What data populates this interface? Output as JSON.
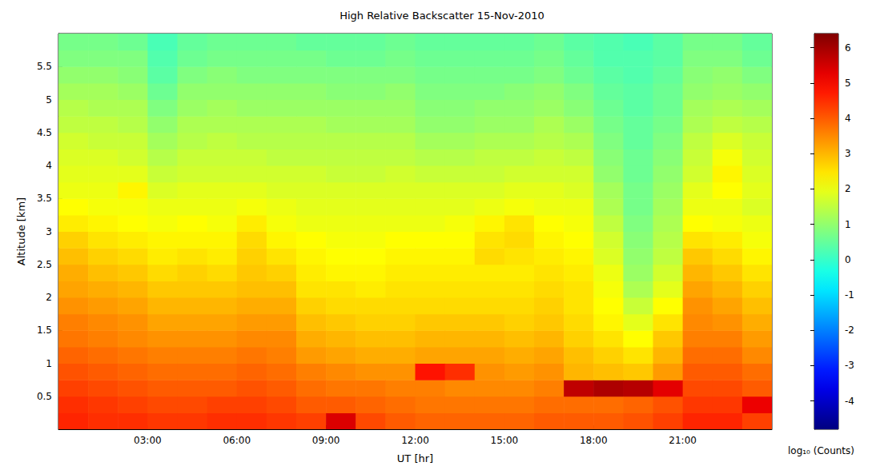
{
  "chart_data": {
    "type": "heatmap",
    "title": "High Relative Backscatter 15-Nov-2010",
    "xlabel": "UT [hr]",
    "ylabel": "Altitude [km]",
    "xlim": [
      0,
      24
    ],
    "xticks": [
      {
        "value": 3,
        "label": "03:00"
      },
      {
        "value": 6,
        "label": "06:00"
      },
      {
        "value": 9,
        "label": "09:00"
      },
      {
        "value": 12,
        "label": "12:00"
      },
      {
        "value": 15,
        "label": "15:00"
      },
      {
        "value": 18,
        "label": "18:00"
      },
      {
        "value": 21,
        "label": "21:00"
      }
    ],
    "ylim": [
      0,
      6
    ],
    "yticks": [
      0.5,
      1,
      1.5,
      2,
      2.5,
      3,
      3.5,
      4,
      4.5,
      5,
      5.5
    ],
    "grid": false,
    "x": [
      0.5,
      1.5,
      2.5,
      3.5,
      4.5,
      5.5,
      6.5,
      7.5,
      8.5,
      9.5,
      10.5,
      11.5,
      12.5,
      13.5,
      14.5,
      15.5,
      16.5,
      17.5,
      18.5,
      19.5,
      20.5,
      21.5,
      22.5,
      23.5
    ],
    "y": [
      0.125,
      0.375,
      0.625,
      0.875,
      1.125,
      1.375,
      1.625,
      1.875,
      2.125,
      2.375,
      2.625,
      2.875,
      3.125,
      3.375,
      3.625,
      3.875,
      4.125,
      4.375,
      4.625,
      4.875,
      5.125,
      5.375,
      5.625,
      5.875
    ],
    "z": [
      [
        4.6,
        4.5,
        4.3,
        4.1,
        3.9,
        3.7,
        3.6,
        3.4,
        3.2,
        3.1,
        2.9,
        2.7,
        2.4,
        2.2,
        2.0,
        1.9,
        1.8,
        1.7,
        1.5,
        1.4,
        1.2,
        1.0,
        0.8,
        0.7
      ],
      [
        4.5,
        4.4,
        4.2,
        4.0,
        3.8,
        3.6,
        3.5,
        3.3,
        3.1,
        2.9,
        2.7,
        2.5,
        2.3,
        2.1,
        2.0,
        1.9,
        1.8,
        1.6,
        1.5,
        1.3,
        1.2,
        1.0,
        0.8,
        0.7
      ],
      [
        4.5,
        4.3,
        4.1,
        3.9,
        3.7,
        3.5,
        3.4,
        3.2,
        3.0,
        2.8,
        2.6,
        2.4,
        2.2,
        2.1,
        2.3,
        1.9,
        1.7,
        1.6,
        1.4,
        1.3,
        1.1,
        0.9,
        0.8,
        0.6
      ],
      [
        4.4,
        4.2,
        4.0,
        3.8,
        3.6,
        3.4,
        3.2,
        3.0,
        2.8,
        2.6,
        2.4,
        2.3,
        2.1,
        2.0,
        1.8,
        1.6,
        1.4,
        1.2,
        1.0,
        0.8,
        0.6,
        0.4,
        0.3,
        0.2
      ],
      [
        4.4,
        4.2,
        4.0,
        3.8,
        3.6,
        3.4,
        3.2,
        3.0,
        2.8,
        2.7,
        2.5,
        2.3,
        2.2,
        2.0,
        1.9,
        1.7,
        1.6,
        1.4,
        1.3,
        1.1,
        1.0,
        0.8,
        0.6,
        0.5
      ],
      [
        4.5,
        4.3,
        4.0,
        3.8,
        3.6,
        3.4,
        3.2,
        3.0,
        2.8,
        2.6,
        2.4,
        2.3,
        2.1,
        2.0,
        1.9,
        1.7,
        1.6,
        1.5,
        1.3,
        1.2,
        1.0,
        0.9,
        0.7,
        0.6
      ],
      [
        4.5,
        4.3,
        4.1,
        3.9,
        3.7,
        3.5,
        3.3,
        3.1,
        2.9,
        2.8,
        2.7,
        2.6,
        2.4,
        2.1,
        1.9,
        1.7,
        1.6,
        1.4,
        1.3,
        1.1,
        1.0,
        0.8,
        0.7,
        0.6
      ],
      [
        4.4,
        4.2,
        4.0,
        3.8,
        3.6,
        3.5,
        3.3,
        3.1,
        2.9,
        2.7,
        2.5,
        2.3,
        2.1,
        2.0,
        1.8,
        1.7,
        1.5,
        1.4,
        1.3,
        1.1,
        1.0,
        0.8,
        0.7,
        0.6
      ],
      [
        4.3,
        4.0,
        3.8,
        3.6,
        3.3,
        3.1,
        2.9,
        2.7,
        2.5,
        2.4,
        2.3,
        2.2,
        2.0,
        1.9,
        1.8,
        1.7,
        1.5,
        1.4,
        1.3,
        1.1,
        1.0,
        0.8,
        0.7,
        0.5
      ],
      [
        5.4,
        4.0,
        3.7,
        3.5,
        3.2,
        3.0,
        2.8,
        2.6,
        2.5,
        2.3,
        2.2,
        2.1,
        2.0,
        1.9,
        1.8,
        1.6,
        1.5,
        1.4,
        1.2,
        1.1,
        0.9,
        0.8,
        0.6,
        0.5
      ],
      [
        4.2,
        3.9,
        3.7,
        3.4,
        3.1,
        2.9,
        2.7,
        2.6,
        2.4,
        2.3,
        2.2,
        2.1,
        2.0,
        1.9,
        1.8,
        1.6,
        1.5,
        1.4,
        1.2,
        1.1,
        0.9,
        0.8,
        0.6,
        0.5
      ],
      [
        4.0,
        3.8,
        3.6,
        3.4,
        3.1,
        2.9,
        2.7,
        2.6,
        2.5,
        2.4,
        2.3,
        2.2,
        2.0,
        1.9,
        1.8,
        1.7,
        1.5,
        1.4,
        1.2,
        1.1,
        1.0,
        0.8,
        0.7,
        0.6
      ],
      [
        3.9,
        3.7,
        3.6,
        4.8,
        3.2,
        3.0,
        2.8,
        2.6,
        2.5,
        2.4,
        2.3,
        2.2,
        2.0,
        1.9,
        1.8,
        1.6,
        1.4,
        1.2,
        1.0,
        0.9,
        0.8,
        0.7,
        0.6,
        0.5
      ],
      [
        3.9,
        3.7,
        3.5,
        4.5,
        3.2,
        3.0,
        2.8,
        2.6,
        2.5,
        2.4,
        2.3,
        2.2,
        2.1,
        1.9,
        1.8,
        1.6,
        1.4,
        1.2,
        1.0,
        0.9,
        0.8,
        0.7,
        0.6,
        0.5
      ],
      [
        3.9,
        3.7,
        3.5,
        3.4,
        3.2,
        3.0,
        2.8,
        2.6,
        2.5,
        2.4,
        2.6,
        2.5,
        2.3,
        2.0,
        1.8,
        1.6,
        1.5,
        1.3,
        1.1,
        1.0,
        0.8,
        0.7,
        0.6,
        0.5
      ],
      [
        3.9,
        3.7,
        3.5,
        3.3,
        3.1,
        2.9,
        2.7,
        2.6,
        2.5,
        2.4,
        2.5,
        2.6,
        2.5,
        2.1,
        1.9,
        1.7,
        1.5,
        1.3,
        1.1,
        1.0,
        0.9,
        0.7,
        0.6,
        0.5
      ],
      [
        4.0,
        3.8,
        3.6,
        3.4,
        3.2,
        3.0,
        2.8,
        2.7,
        2.6,
        2.5,
        2.4,
        2.3,
        2.2,
        2.0,
        1.9,
        1.7,
        1.6,
        1.4,
        1.3,
        1.1,
        1.0,
        0.8,
        0.7,
        0.6
      ],
      [
        4.0,
        3.8,
        5.7,
        3.0,
        2.9,
        2.7,
        2.6,
        2.5,
        2.5,
        2.4,
        2.3,
        2.2,
        2.1,
        2.0,
        1.8,
        1.7,
        1.5,
        1.3,
        1.1,
        0.9,
        0.8,
        0.6,
        0.5,
        0.4
      ],
      [
        4.0,
        3.8,
        5.9,
        2.9,
        2.7,
        2.5,
        2.3,
        2.2,
        2.1,
        2.0,
        1.8,
        1.7,
        1.5,
        1.3,
        1.2,
        1.0,
        0.9,
        0.8,
        0.7,
        0.6,
        0.5,
        0.4,
        0.3,
        0.3
      ],
      [
        4.1,
        3.9,
        5.8,
        2.8,
        2.5,
        2.2,
        1.9,
        1.6,
        1.3,
        1.1,
        1.0,
        0.9,
        0.8,
        0.7,
        0.7,
        0.6,
        0.6,
        0.5,
        0.5,
        0.4,
        0.4,
        0.3,
        0.3,
        0.2
      ],
      [
        4.3,
        4.1,
        5.3,
        3.3,
        3.0,
        2.8,
        2.5,
        2.2,
        1.9,
        1.7,
        1.5,
        1.4,
        1.3,
        1.2,
        1.1,
        1.0,
        0.9,
        0.8,
        0.7,
        0.6,
        0.6,
        0.5,
        0.4,
        0.4
      ],
      [
        4.6,
        4.4,
        4.2,
        4.0,
        3.8,
        3.6,
        3.5,
        3.4,
        3.2,
        3.0,
        2.8,
        2.5,
        2.2,
        2.0,
        1.9,
        1.7,
        1.6,
        1.5,
        1.3,
        1.2,
        1.0,
        0.9,
        0.8,
        0.7
      ],
      [
        4.6,
        4.4,
        4.2,
        4.0,
        3.8,
        3.6,
        3.4,
        3.2,
        3.0,
        2.8,
        2.6,
        2.4,
        2.1,
        2.0,
        2.2,
        2.3,
        2.1,
        1.8,
        1.5,
        1.3,
        1.1,
        1.0,
        0.8,
        0.7
      ],
      [
        4.3,
        5.2,
        4.0,
        3.8,
        3.5,
        3.3,
        3.1,
        2.9,
        2.7,
        2.5,
        2.3,
        2.1,
        2.0,
        1.8,
        1.9,
        1.8,
        1.7,
        1.6,
        1.4,
        1.2,
        1.0,
        0.8,
        0.6,
        0.5
      ]
    ],
    "colorbar": {
      "range": [
        -4.8,
        6.4
      ],
      "ticks": [
        -4,
        -3,
        -2,
        -1,
        0,
        1,
        2,
        3,
        4,
        5,
        6
      ],
      "label": "log₁₀ (Counts)"
    }
  }
}
